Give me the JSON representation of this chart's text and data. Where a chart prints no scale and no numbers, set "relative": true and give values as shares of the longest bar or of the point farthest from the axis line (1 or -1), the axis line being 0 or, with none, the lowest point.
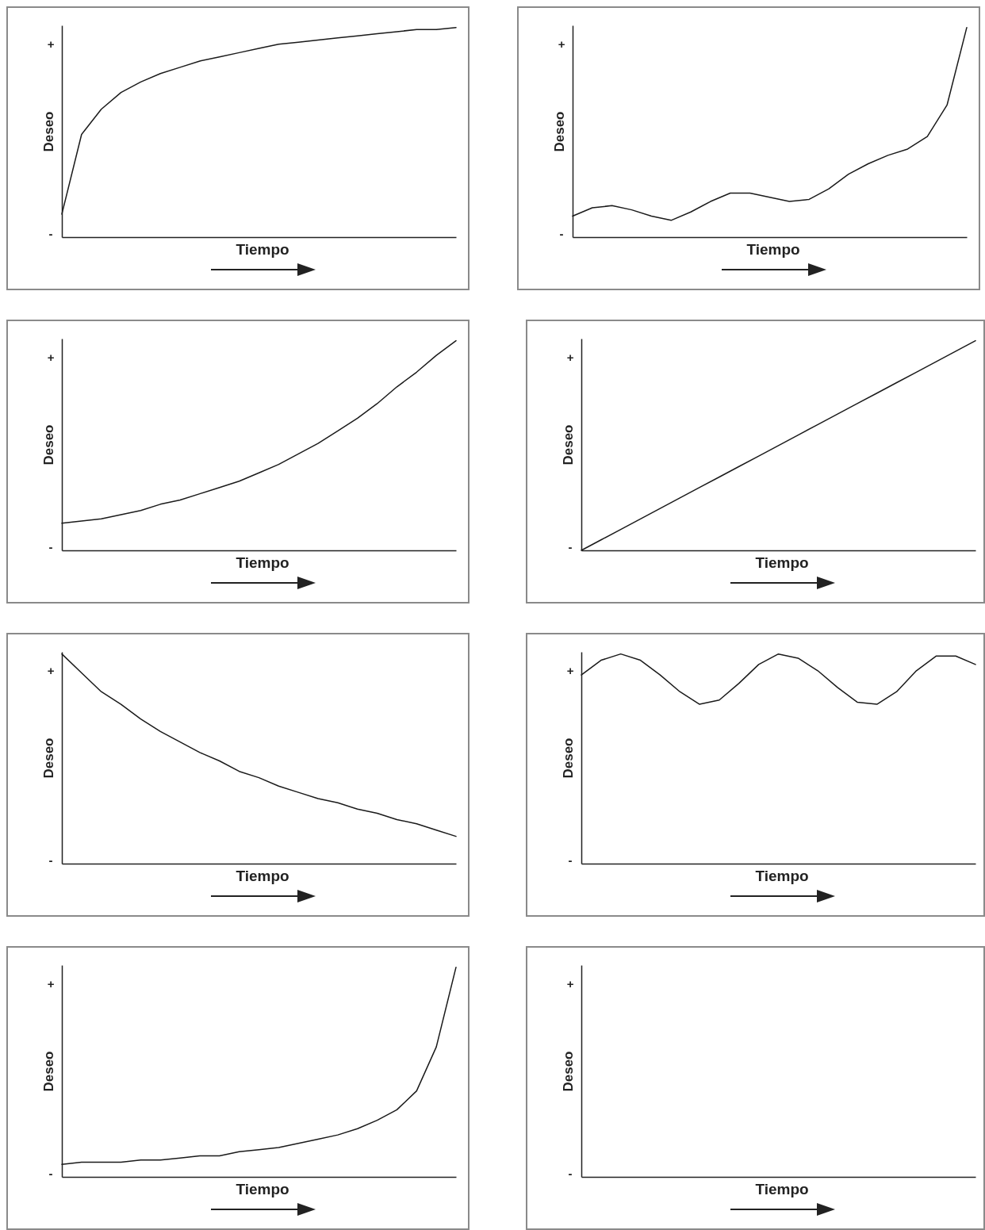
{
  "chart_data": [
    {
      "type": "line",
      "relative": true,
      "xlabel": "Tiempo",
      "ylabel": "Deseo",
      "annotations": [
        "+",
        "-"
      ],
      "categories": [
        null,
        null,
        null,
        null,
        null,
        null,
        null,
        null,
        null,
        null,
        null,
        null,
        null,
        null,
        null,
        null,
        null,
        null,
        null,
        null,
        null
      ],
      "series": [
        {
          "color": "#1a1a1a",
          "values": [
            0.11,
            0.49,
            0.61,
            0.69,
            0.74,
            0.78,
            0.81,
            0.84,
            0.86,
            0.88,
            0.9,
            0.92,
            0.93,
            0.94,
            0.95,
            0.96,
            0.97,
            0.98,
            0.99,
            0.99,
            1
          ]
        }
      ]
    },
    {
      "type": "line",
      "relative": true,
      "xlabel": "Tiempo",
      "ylabel": "Deseo",
      "annotations": [
        "+",
        "-"
      ],
      "categories": [
        null,
        null,
        null,
        null,
        null,
        null,
        null,
        null,
        null,
        null,
        null,
        null,
        null,
        null,
        null,
        null,
        null,
        null,
        null,
        null,
        null
      ],
      "series": [
        {
          "color": "#1a1a1a",
          "values": [
            0.1,
            0.14,
            0.15,
            0.13,
            0.1,
            0.08,
            0.12,
            0.17,
            0.21,
            0.21,
            0.19,
            0.17,
            0.18,
            0.23,
            0.3,
            0.35,
            0.39,
            0.42,
            0.48,
            0.63,
            1
          ]
        }
      ]
    },
    {
      "type": "line",
      "relative": true,
      "xlabel": "Tiempo",
      "ylabel": "Deseo",
      "annotations": [
        "+",
        "-"
      ],
      "categories": [
        null,
        null,
        null,
        null,
        null,
        null,
        null,
        null,
        null,
        null,
        null,
        null,
        null,
        null,
        null,
        null,
        null,
        null,
        null,
        null,
        null
      ],
      "series": [
        {
          "color": "#1a1a1a",
          "values": [
            0.13,
            0.14,
            0.15,
            0.17,
            0.19,
            0.22,
            0.24,
            0.27,
            0.3,
            0.33,
            0.37,
            0.41,
            0.46,
            0.51,
            0.57,
            0.63,
            0.7,
            0.78,
            0.85,
            0.93,
            1
          ]
        }
      ]
    },
    {
      "type": "line",
      "relative": true,
      "xlabel": "Tiempo",
      "ylabel": "Deseo",
      "annotations": [
        "+",
        "-"
      ],
      "categories": [
        null,
        null,
        null,
        null,
        null,
        null,
        null,
        null,
        null,
        null,
        null,
        null,
        null,
        null,
        null,
        null,
        null,
        null,
        null,
        null,
        null
      ],
      "series": [
        {
          "color": "#1a1a1a",
          "values": [
            0,
            0.05,
            0.1,
            0.15,
            0.2,
            0.25,
            0.3,
            0.35,
            0.4,
            0.45,
            0.5,
            0.55,
            0.6,
            0.65,
            0.7,
            0.75,
            0.8,
            0.85,
            0.9,
            0.95,
            1
          ]
        }
      ]
    },
    {
      "type": "line",
      "relative": true,
      "xlabel": "Tiempo",
      "ylabel": "Deseo",
      "annotations": [
        "+",
        "-"
      ],
      "categories": [
        null,
        null,
        null,
        null,
        null,
        null,
        null,
        null,
        null,
        null,
        null,
        null,
        null,
        null,
        null,
        null,
        null,
        null,
        null,
        null,
        null
      ],
      "series": [
        {
          "color": "#1a1a1a",
          "values": [
            1,
            0.91,
            0.82,
            0.76,
            0.69,
            0.63,
            0.58,
            0.53,
            0.49,
            0.44,
            0.41,
            0.37,
            0.34,
            0.31,
            0.29,
            0.26,
            0.24,
            0.21,
            0.19,
            0.16,
            0.13
          ]
        }
      ]
    },
    {
      "type": "line",
      "relative": true,
      "xlabel": "Tiempo",
      "ylabel": "Deseo",
      "annotations": [
        "+",
        "-"
      ],
      "categories": [
        null,
        null,
        null,
        null,
        null,
        null,
        null,
        null,
        null,
        null,
        null,
        null,
        null,
        null,
        null,
        null,
        null,
        null,
        null,
        null,
        null
      ],
      "series": [
        {
          "color": "#1a1a1a",
          "values": [
            0.9,
            0.97,
            1,
            0.97,
            0.9,
            0.82,
            0.76,
            0.78,
            0.86,
            0.95,
            1,
            0.98,
            0.92,
            0.84,
            0.77,
            0.76,
            0.82,
            0.92,
            0.99,
            0.99,
            0.95
          ]
        }
      ]
    },
    {
      "type": "line",
      "relative": true,
      "xlabel": "Tiempo",
      "ylabel": "Deseo",
      "annotations": [
        "+",
        "-"
      ],
      "categories": [
        null,
        null,
        null,
        null,
        null,
        null,
        null,
        null,
        null,
        null,
        null,
        null,
        null,
        null,
        null,
        null,
        null,
        null,
        null,
        null,
        null
      ],
      "series": [
        {
          "color": "#1a1a1a",
          "values": [
            0.06,
            0.07,
            0.07,
            0.07,
            0.08,
            0.08,
            0.09,
            0.1,
            0.1,
            0.12,
            0.13,
            0.14,
            0.16,
            0.18,
            0.2,
            0.23,
            0.27,
            0.32,
            0.41,
            0.62,
            1
          ]
        }
      ]
    },
    {
      "type": "other",
      "xlabel": "Tiempo",
      "ylabel": "Deseo",
      "annotations": [
        "+",
        "-"
      ]
    }
  ]
}
